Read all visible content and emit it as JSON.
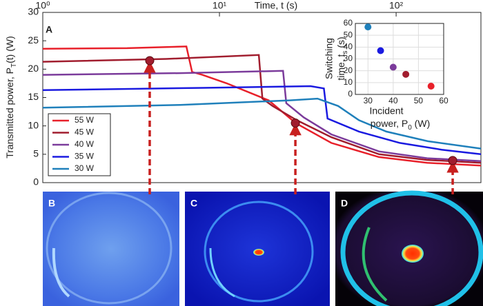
{
  "chart_data": [
    {
      "type": "line",
      "panel_label": "A",
      "x_label": "Time, t (s)",
      "y_label": [
        "Transmitted power, P",
        "T",
        "(t) (W)"
      ],
      "xlim": [
        1,
        302
      ],
      "log_x": true,
      "xticks": [
        {
          "value": 1,
          "label": "10⁰"
        },
        {
          "value": 10,
          "label": "10¹"
        },
        {
          "value": 100,
          "label": "10²"
        }
      ],
      "ylim": [
        0,
        30
      ],
      "yticks": [
        0,
        5,
        10,
        15,
        20,
        25,
        30
      ],
      "legend": "lower left",
      "series": [
        {
          "name": "55 W",
          "color": "#e8202a",
          "x": [
            1,
            3,
            6.5,
            7,
            8,
            11,
            19,
            27,
            43,
            80,
            150,
            302
          ],
          "values": [
            23.6,
            23.7,
            24,
            19.5,
            19,
            17.5,
            14.5,
            10.5,
            7,
            4.5,
            3.5,
            3
          ]
        },
        {
          "name": "45 W",
          "color": "#a11d2e",
          "x": [
            1,
            5,
            16.7,
            17.5,
            20,
            27.4,
            43,
            80,
            150,
            302
          ],
          "values": [
            21.3,
            21.8,
            22.5,
            14.8,
            13.5,
            11,
            8,
            5,
            4,
            3.5
          ]
        },
        {
          "name": "40 W",
          "color": "#7b3b9b",
          "x": [
            1,
            6,
            22.9,
            23.9,
            30,
            43,
            80,
            150,
            302
          ],
          "values": [
            19,
            19.3,
            19.7,
            14,
            11.5,
            8.5,
            5.5,
            4.3,
            3.8
          ]
        },
        {
          "name": "35 W",
          "color": "#1a1ae0",
          "x": [
            1,
            8,
            32.8,
            39,
            40.9,
            61.6,
            105,
            181,
            302
          ],
          "values": [
            16.3,
            16.7,
            17,
            16.6,
            11.3,
            9,
            7,
            5.8,
            5
          ]
        },
        {
          "name": "30 W",
          "color": "#1f80bb",
          "x": [
            1,
            6,
            25,
            35.9,
            47,
            61.6,
            88,
            151,
            302
          ],
          "values": [
            13.2,
            13.7,
            14.5,
            14.8,
            13.5,
            11,
            9,
            7.3,
            6
          ]
        }
      ],
      "markers": [
        {
          "x": 4.03,
          "y": 21.5
        },
        {
          "x": 26.9,
          "y": 10.5
        },
        {
          "x": 209,
          "y": 3.9
        }
      ]
    },
    {
      "type": "scatter",
      "x_label": {
        "line1": "Incident",
        "line2": [
          "power, P",
          "0",
          " (W)"
        ]
      },
      "y_label": {
        "line1": "Switching",
        "line2": [
          "time, t",
          "s",
          " (s)"
        ]
      },
      "xlim": [
        25,
        60
      ],
      "xticks": [
        30,
        40,
        50,
        60
      ],
      "ylim": [
        0,
        60
      ],
      "yticks": [
        0,
        10,
        20,
        30,
        40,
        50,
        60
      ],
      "grid": true,
      "x": [
        30,
        35,
        40,
        45,
        55
      ],
      "values": [
        57,
        37,
        23,
        17,
        7
      ],
      "colors": [
        "#1f80bb",
        "#1a1ae0",
        "#7b3b9b",
        "#a11d2e",
        "#e8202a"
      ]
    }
  ],
  "panels": [
    "B",
    "C",
    "D"
  ]
}
